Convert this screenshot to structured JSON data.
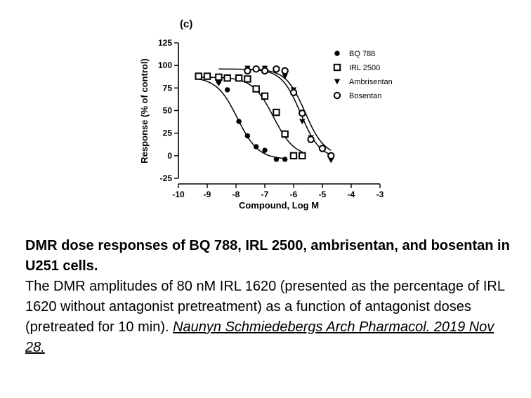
{
  "panel_label": "(c)",
  "caption": {
    "title": "DMR dose responses of BQ 788, IRL 2500, ambrisentan, and bosentan in U251 cells.",
    "body": "The DMR amplitudes of 80 nM IRL 1620 (presented as the percentage of IRL 1620 without antagonist pretreatment) as a function of antagonist doses (pretreated for 10 min).",
    "citation": "Naunyn Schmiedebergs Arch Pharmacol. 2019 Nov 28."
  },
  "chart_data": {
    "type": "scatter",
    "title": "",
    "xlabel": "Compound, Log M",
    "ylabel": "Response (% of control)",
    "xlim": [
      -10,
      -3
    ],
    "ylim": [
      -25,
      125
    ],
    "xticks": [
      -10,
      -9,
      -8,
      -7,
      -6,
      -5,
      -4,
      -3
    ],
    "yticks": [
      -25,
      0,
      25,
      50,
      75,
      100,
      125
    ],
    "legend_position": "top-right",
    "series": [
      {
        "name": "BQ 788",
        "marker": "circle-filled",
        "x": [
          -9.3,
          -9.0,
          -8.6,
          -8.3,
          -7.9,
          -7.6,
          -7.3,
          -7.0,
          -6.6,
          -6.3
        ],
        "y": [
          88,
          88,
          82,
          73,
          38,
          22,
          10,
          6,
          -4,
          -4
        ],
        "fit": {
          "top": 87,
          "bottom": -4,
          "log_ic50": -7.95,
          "hill": 1.2
        }
      },
      {
        "name": "IRL 2500",
        "marker": "square-open",
        "x": [
          -9.3,
          -9.0,
          -8.6,
          -8.3,
          -7.9,
          -7.6,
          -7.3,
          -7.0,
          -6.6,
          -6.3,
          -6.0,
          -5.7
        ],
        "y": [
          88,
          88,
          87,
          86,
          86,
          85,
          74,
          66,
          48,
          24,
          0,
          0
        ],
        "fit": {
          "top": 87,
          "bottom": -1,
          "log_ic50": -6.7,
          "hill": 1.2
        }
      },
      {
        "name": "Ambrisentan",
        "marker": "triangle-down-filled",
        "x": [
          -8.6,
          -7.6,
          -7.3,
          -7.0,
          -6.6,
          -6.3,
          -6.0,
          -5.7,
          -5.4,
          -5.0,
          -4.7
        ],
        "y": [
          80,
          97,
          96,
          97,
          95,
          88,
          73,
          38,
          20,
          7,
          -5
        ],
        "fit": {
          "top": 96,
          "bottom": -3,
          "log_ic50": -5.75,
          "hill": 1.3
        }
      },
      {
        "name": "Bosentan",
        "marker": "circle-open",
        "x": [
          -7.6,
          -7.3,
          -7.0,
          -6.6,
          -6.3,
          -6.0,
          -5.7,
          -5.4,
          -5.0,
          -4.7
        ],
        "y": [
          94,
          96,
          94,
          96,
          94,
          70,
          47,
          18,
          8,
          0
        ],
        "fit": {
          "top": 96,
          "bottom": 0,
          "log_ic50": -5.6,
          "hill": 1.3
        }
      }
    ]
  }
}
